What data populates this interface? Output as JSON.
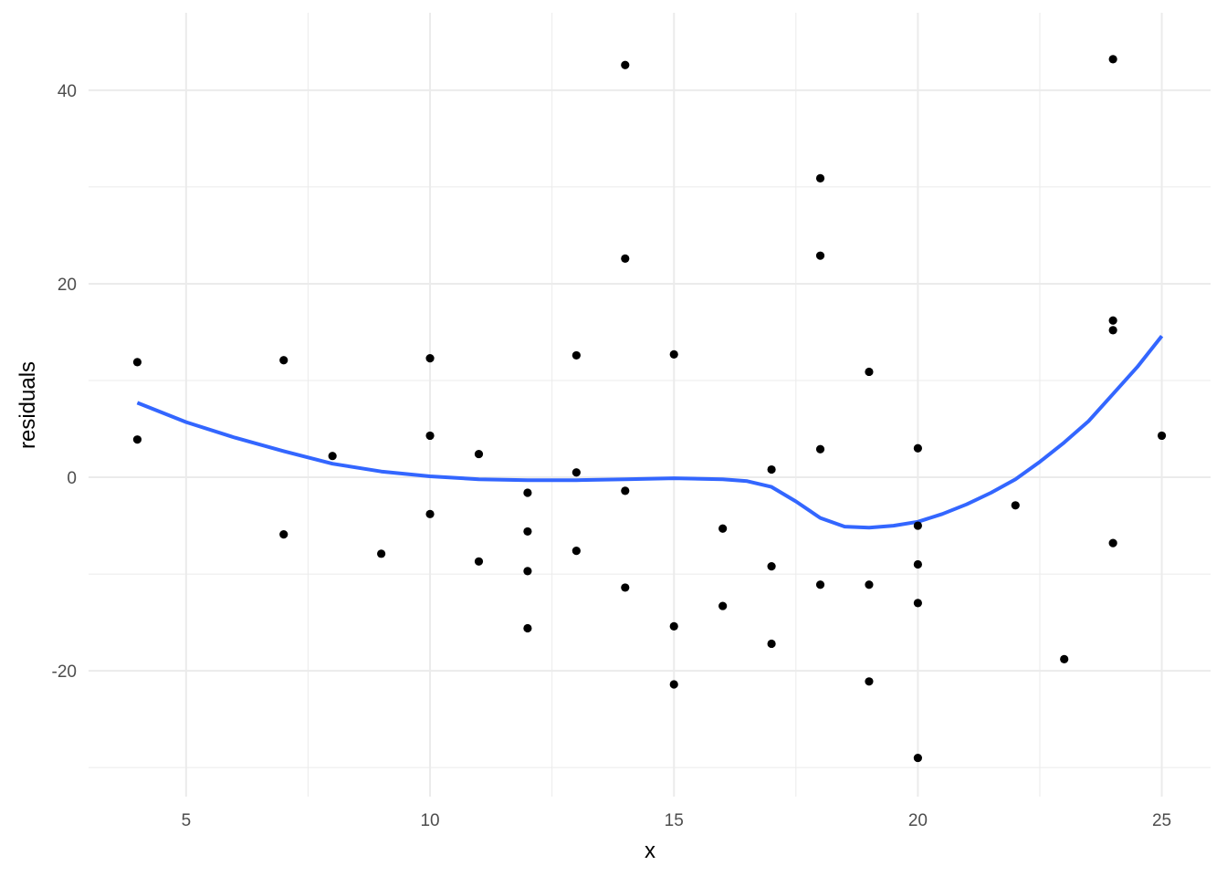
{
  "chart_data": {
    "type": "scatter",
    "xlabel": "x",
    "ylabel": "residuals",
    "xlim": [
      3,
      26
    ],
    "ylim": [
      -33,
      48
    ],
    "x_ticks": [
      5,
      10,
      15,
      20,
      25
    ],
    "x_tick_labels": [
      "5",
      "10",
      "15",
      "20",
      "25"
    ],
    "y_ticks": [
      -20,
      0,
      20,
      40
    ],
    "y_tick_labels": [
      "-20",
      "0",
      "20",
      "40"
    ],
    "x_minor": [
      7.5,
      12.5,
      17.5,
      22.5
    ],
    "y_minor": [
      -30,
      -10,
      10,
      30
    ],
    "grid": true,
    "points": [
      {
        "x": 4,
        "y": 11.9
      },
      {
        "x": 4,
        "y": 3.9
      },
      {
        "x": 7,
        "y": 12.1
      },
      {
        "x": 7,
        "y": -5.9
      },
      {
        "x": 8,
        "y": 2.2
      },
      {
        "x": 9,
        "y": -7.9
      },
      {
        "x": 10,
        "y": 12.3
      },
      {
        "x": 10,
        "y": 4.3
      },
      {
        "x": 10,
        "y": -3.8
      },
      {
        "x": 11,
        "y": 2.4
      },
      {
        "x": 11,
        "y": -8.7
      },
      {
        "x": 12,
        "y": -1.6
      },
      {
        "x": 12,
        "y": -5.6
      },
      {
        "x": 12,
        "y": -9.7
      },
      {
        "x": 12,
        "y": -15.6
      },
      {
        "x": 13,
        "y": 12.6
      },
      {
        "x": 13,
        "y": 0.5
      },
      {
        "x": 13,
        "y": -7.6
      },
      {
        "x": 14,
        "y": 42.6
      },
      {
        "x": 14,
        "y": 22.6
      },
      {
        "x": 14,
        "y": -1.4
      },
      {
        "x": 14,
        "y": -11.4
      },
      {
        "x": 15,
        "y": 12.7
      },
      {
        "x": 15,
        "y": -15.4
      },
      {
        "x": 15,
        "y": -21.4
      },
      {
        "x": 16,
        "y": -5.3
      },
      {
        "x": 16,
        "y": -13.3
      },
      {
        "x": 17,
        "y": 0.8
      },
      {
        "x": 17,
        "y": -9.2
      },
      {
        "x": 17,
        "y": -17.2
      },
      {
        "x": 18,
        "y": 30.9
      },
      {
        "x": 18,
        "y": 22.9
      },
      {
        "x": 18,
        "y": 2.9
      },
      {
        "x": 18,
        "y": -11.1
      },
      {
        "x": 19,
        "y": 10.9
      },
      {
        "x": 19,
        "y": -11.1
      },
      {
        "x": 19,
        "y": -21.1
      },
      {
        "x": 20,
        "y": 3.0
      },
      {
        "x": 20,
        "y": -5.0
      },
      {
        "x": 20,
        "y": -9.0
      },
      {
        "x": 20,
        "y": -13.0
      },
      {
        "x": 20,
        "y": -29.0
      },
      {
        "x": 22,
        "y": -2.9
      },
      {
        "x": 23,
        "y": -18.8
      },
      {
        "x": 24,
        "y": 43.2
      },
      {
        "x": 24,
        "y": 16.2
      },
      {
        "x": 24,
        "y": 15.2
      },
      {
        "x": 24,
        "y": -6.8
      },
      {
        "x": 25,
        "y": 4.3
      }
    ],
    "smooth_line": {
      "color": "#3366ff",
      "x": [
        4,
        5,
        6,
        7,
        8,
        9,
        10,
        11,
        12,
        13,
        14,
        15,
        16,
        16.5,
        17,
        17.5,
        18,
        18.5,
        19,
        19.5,
        20,
        20.5,
        21,
        21.5,
        22,
        22.5,
        23,
        23.5,
        24,
        24.5,
        25
      ],
      "y": [
        7.7,
        5.7,
        4.1,
        2.7,
        1.4,
        0.6,
        0.1,
        -0.2,
        -0.3,
        -0.3,
        -0.2,
        -0.1,
        -0.2,
        -0.4,
        -1.0,
        -2.5,
        -4.2,
        -5.1,
        -5.2,
        -5.0,
        -4.6,
        -3.8,
        -2.8,
        -1.6,
        -0.2,
        1.6,
        3.6,
        5.8,
        8.6,
        11.4,
        14.6
      ]
    },
    "point_color": "#000000",
    "grid_color": "#ebebeb"
  }
}
